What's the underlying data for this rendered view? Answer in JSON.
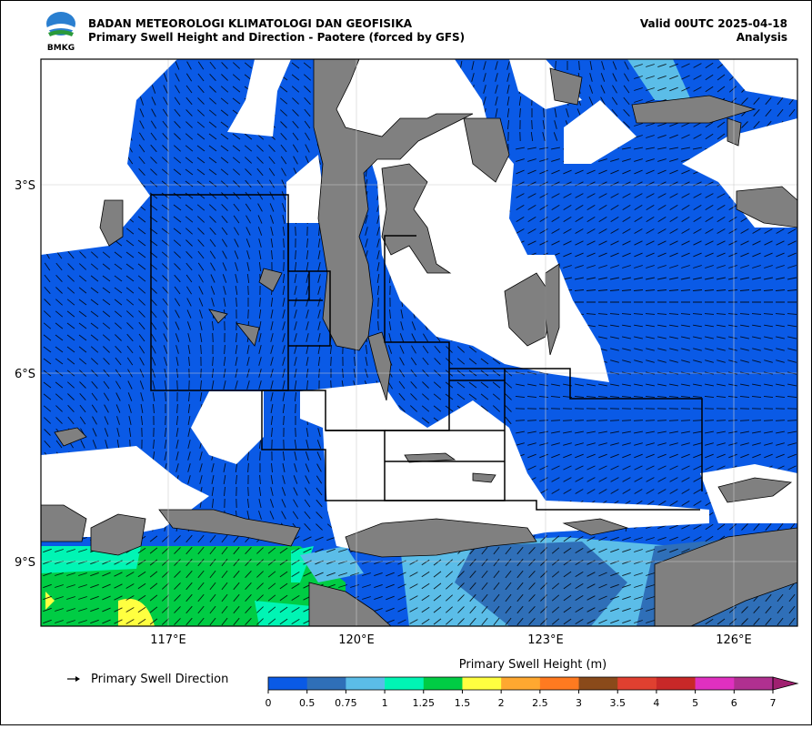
{
  "header": {
    "agency": "BADAN METEOROLOGI KLIMATOLOGI DAN GEOFISIKA",
    "title": "Primary Swell Height and Direction - Paotere (forced by GFS)",
    "valid": "Valid 00UTC 2025-04-18",
    "mode": "Analysis",
    "logo_text": "BMKG"
  },
  "map": {
    "lon_ticks": [
      "117°E",
      "120°E",
      "123°E",
      "126°E"
    ],
    "lat_ticks": [
      "3°S",
      "6°S",
      "9°S"
    ]
  },
  "legend": {
    "direction_label": "Primary Swell Direction"
  },
  "colorbar": {
    "title": "Primary Swell Height (m)",
    "ticks": [
      0,
      0.5,
      0.75,
      1,
      1.25,
      1.5,
      2,
      2.5,
      3,
      3.5,
      4,
      5,
      6,
      7
    ],
    "colors": [
      "#0a5ae6",
      "#2f6fb8",
      "#5bbde8",
      "#00f5b4",
      "#00cc44",
      "#ffff40",
      "#ffa830",
      "#ff7a20",
      "#8a4a1a",
      "#e04030",
      "#c82828",
      "#e030c0",
      "#b03090",
      "#a02070"
    ]
  }
}
